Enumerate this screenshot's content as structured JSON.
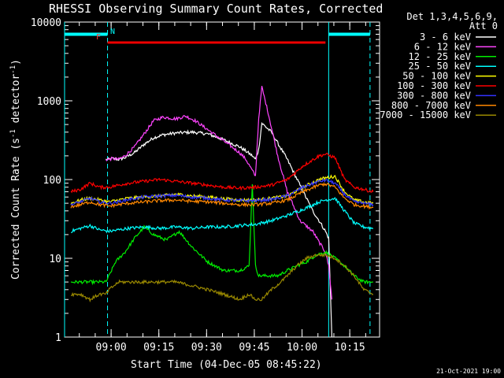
{
  "chart_data": {
    "type": "line",
    "title": "RHESSI Observing Summary Count Rates, Corrected",
    "xlabel": "Start Time (04-Dec-05 08:45:22)",
    "ylabel_main": "Corrected Count Rate (s",
    "ylabel_sup1": "-1",
    "ylabel_mid": " detector",
    "ylabel_sup2": "-1",
    "ylabel_end": ")",
    "yscale": "log",
    "ylim": [
      1,
      10000
    ],
    "xlim": [
      0,
      99
    ],
    "x_unit": "minutes after 08:45:22",
    "yticks": [
      {
        "value": 1,
        "label": "1"
      },
      {
        "value": 10,
        "label": "10"
      },
      {
        "value": 100,
        "label": "100"
      },
      {
        "value": 1000,
        "label": "1000"
      },
      {
        "value": 10000,
        "label": "10000"
      }
    ],
    "xticks": [
      {
        "value": 14.63,
        "label": "09:00"
      },
      {
        "value": 29.63,
        "label": "09:15"
      },
      {
        "value": 44.63,
        "label": "09:30"
      },
      {
        "value": 59.63,
        "label": "09:45"
      },
      {
        "value": 74.63,
        "label": "10:00"
      },
      {
        "value": 89.63,
        "label": "10:15"
      }
    ],
    "legend_header": [
      "Det 1,3,4,5,6,9,",
      "Att 0"
    ],
    "legend_position": "right",
    "series": [
      {
        "name": "3 - 6 keV",
        "color": "#ffffff",
        "x": [
          13,
          14,
          15,
          17,
          19,
          22,
          25,
          28,
          31,
          35,
          40,
          45,
          50,
          55,
          57,
          59,
          60,
          61,
          62,
          65,
          70,
          75,
          78,
          80,
          82,
          83,
          84
        ],
        "y": [
          180,
          180,
          185,
          180,
          190,
          220,
          280,
          340,
          370,
          390,
          400,
          380,
          320,
          260,
          230,
          200,
          180,
          240,
          520,
          400,
          180,
          70,
          40,
          30,
          22,
          18,
          1
        ]
      },
      {
        "name": "6 - 12 keV",
        "color": "#ff44ff",
        "x": [
          13,
          14,
          15,
          17,
          19,
          22,
          25,
          28,
          31,
          35,
          38,
          41,
          45,
          50,
          55,
          57,
          59,
          60,
          61,
          62,
          64,
          67,
          70,
          74,
          78,
          80,
          82,
          83,
          84
        ],
        "y": [
          180,
          180,
          185,
          180,
          200,
          260,
          380,
          560,
          620,
          590,
          640,
          560,
          430,
          310,
          220,
          180,
          130,
          110,
          600,
          1500,
          700,
          200,
          70,
          30,
          22,
          16,
          12,
          8,
          3
        ]
      },
      {
        "name": "12 - 25 keV",
        "color": "#00ee00",
        "x": [
          2,
          5,
          8,
          11,
          13,
          14,
          16,
          19,
          22,
          25,
          28,
          32,
          36,
          40,
          45,
          50,
          55,
          58,
          59,
          60,
          61,
          62,
          64,
          67,
          70,
          73,
          76,
          79,
          82,
          85,
          88,
          91,
          94,
          97
        ],
        "y": [
          5,
          5,
          5,
          5,
          5,
          6,
          9,
          12,
          18,
          25,
          20,
          17,
          22,
          14,
          9,
          7,
          7,
          8,
          90,
          8,
          6,
          6,
          6,
          6,
          7,
          8,
          9,
          11,
          12,
          10,
          8,
          6,
          5,
          5
        ]
      },
      {
        "name": "25 - 50 keV",
        "color": "#00ffff",
        "x": [
          2,
          5,
          8,
          11,
          14,
          17,
          20,
          25,
          30,
          35,
          40,
          45,
          50,
          55,
          60,
          65,
          70,
          75,
          80,
          82,
          85,
          88,
          91,
          94,
          97
        ],
        "y": [
          22,
          24,
          26,
          23,
          22,
          23,
          24,
          25,
          24,
          25,
          24,
          25,
          25,
          26,
          27,
          30,
          35,
          42,
          52,
          55,
          58,
          40,
          28,
          25,
          24
        ]
      },
      {
        "name": "50 - 100 keV",
        "color": "#ffff00",
        "x": [
          2,
          5,
          8,
          11,
          14,
          17,
          20,
          25,
          30,
          35,
          40,
          45,
          50,
          55,
          60,
          65,
          70,
          75,
          80,
          82,
          85,
          88,
          91,
          94,
          97
        ],
        "y": [
          50,
          55,
          58,
          55,
          52,
          55,
          58,
          60,
          62,
          65,
          62,
          60,
          57,
          55,
          55,
          58,
          62,
          80,
          100,
          105,
          110,
          70,
          55,
          52,
          50
        ]
      },
      {
        "name": "100 - 300 keV",
        "color": "#ff0000",
        "x": [
          2,
          5,
          8,
          11,
          14,
          17,
          20,
          25,
          30,
          35,
          40,
          45,
          50,
          55,
          60,
          65,
          70,
          75,
          80,
          82,
          85,
          88,
          91,
          94,
          97
        ],
        "y": [
          70,
          75,
          90,
          80,
          80,
          85,
          90,
          95,
          100,
          95,
          90,
          85,
          80,
          78,
          80,
          85,
          100,
          150,
          200,
          210,
          190,
          100,
          80,
          75,
          70
        ]
      },
      {
        "name": "300 - 800 keV",
        "color": "#3333ff",
        "x": [
          2,
          5,
          8,
          11,
          14,
          17,
          20,
          25,
          30,
          35,
          40,
          45,
          50,
          55,
          60,
          65,
          70,
          75,
          80,
          82,
          85,
          88,
          91,
          94,
          97
        ],
        "y": [
          48,
          52,
          58,
          52,
          50,
          52,
          56,
          60,
          62,
          63,
          60,
          58,
          55,
          54,
          54,
          56,
          62,
          80,
          95,
          98,
          90,
          65,
          52,
          50,
          48
        ]
      },
      {
        "name": "800 - 7000 keV",
        "color": "#ff8800",
        "x": [
          2,
          5,
          8,
          11,
          14,
          17,
          20,
          25,
          30,
          35,
          40,
          45,
          50,
          55,
          60,
          65,
          70,
          75,
          80,
          82,
          85,
          88,
          91,
          94,
          97
        ],
        "y": [
          45,
          48,
          52,
          48,
          46,
          48,
          50,
          52,
          54,
          55,
          53,
          52,
          50,
          48,
          48,
          50,
          55,
          70,
          85,
          88,
          80,
          58,
          48,
          46,
          44
        ]
      },
      {
        "name": "7000 - 15000 keV",
        "color": "#998800",
        "x": [
          2,
          5,
          8,
          11,
          13,
          14,
          17,
          20,
          25,
          30,
          35,
          40,
          45,
          50,
          55,
          58,
          60,
          62,
          65,
          68,
          70,
          73,
          76,
          79,
          82,
          85,
          88,
          91,
          94,
          97
        ],
        "y": [
          3.5,
          3.5,
          3,
          3.5,
          3.5,
          4,
          5,
          5,
          5,
          5,
          5,
          4.5,
          4,
          3.5,
          3,
          3.5,
          3,
          3,
          4,
          5,
          6,
          8,
          10,
          11,
          11,
          10,
          8,
          6,
          4,
          3.5
        ]
      }
    ],
    "annotations": [
      {
        "text": "F",
        "color": "#ff3333"
      },
      {
        "text": "N",
        "color": "#00ffff"
      }
    ],
    "flare_bar": {
      "color": "#ee0000",
      "x_start": 13.5,
      "x_end": 82,
      "level": 5500
    },
    "night_bars": [
      {
        "color": "#00ffff",
        "x_start": 0,
        "x_end": 13.5,
        "level": 7000
      },
      {
        "color": "#00ffff",
        "x_start": 83,
        "x_end": 96,
        "level": 7000
      }
    ],
    "marker_lines": [
      {
        "x": 0,
        "style": "solid",
        "color": "#00ffff"
      },
      {
        "x": 13.5,
        "style": "dashed",
        "color": "#00ffff"
      },
      {
        "x": 83,
        "style": "solid",
        "color": "#00ffff"
      },
      {
        "x": 96,
        "style": "dashed",
        "color": "#00ffff"
      }
    ],
    "timestamp": "21-Oct-2021 19:00"
  }
}
